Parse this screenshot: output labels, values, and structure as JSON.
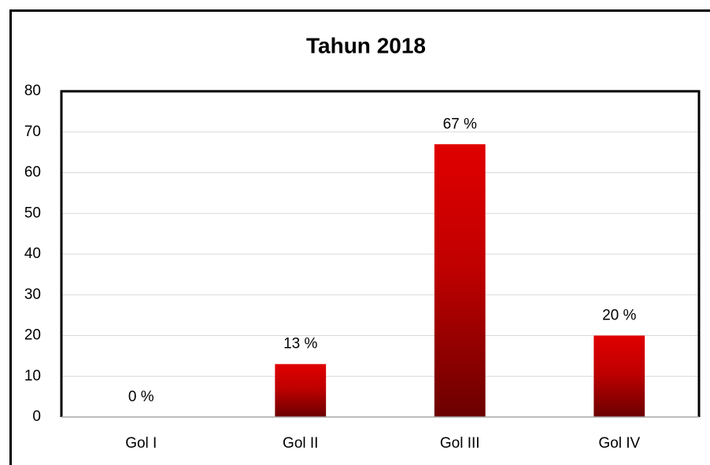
{
  "chart_data": {
    "type": "bar",
    "title": "Tahun 2018",
    "categories": [
      "Gol I",
      "Gol II",
      "Gol III",
      "Gol IV"
    ],
    "values": [
      0,
      13,
      67,
      20
    ],
    "value_labels": [
      "0 %",
      "13 %",
      "67 %",
      "20 %"
    ],
    "color": "#e00000",
    "ylim": [
      0,
      80
    ],
    "yticks": [
      0,
      10,
      20,
      30,
      40,
      50,
      60,
      70,
      80
    ],
    "grid": true
  }
}
